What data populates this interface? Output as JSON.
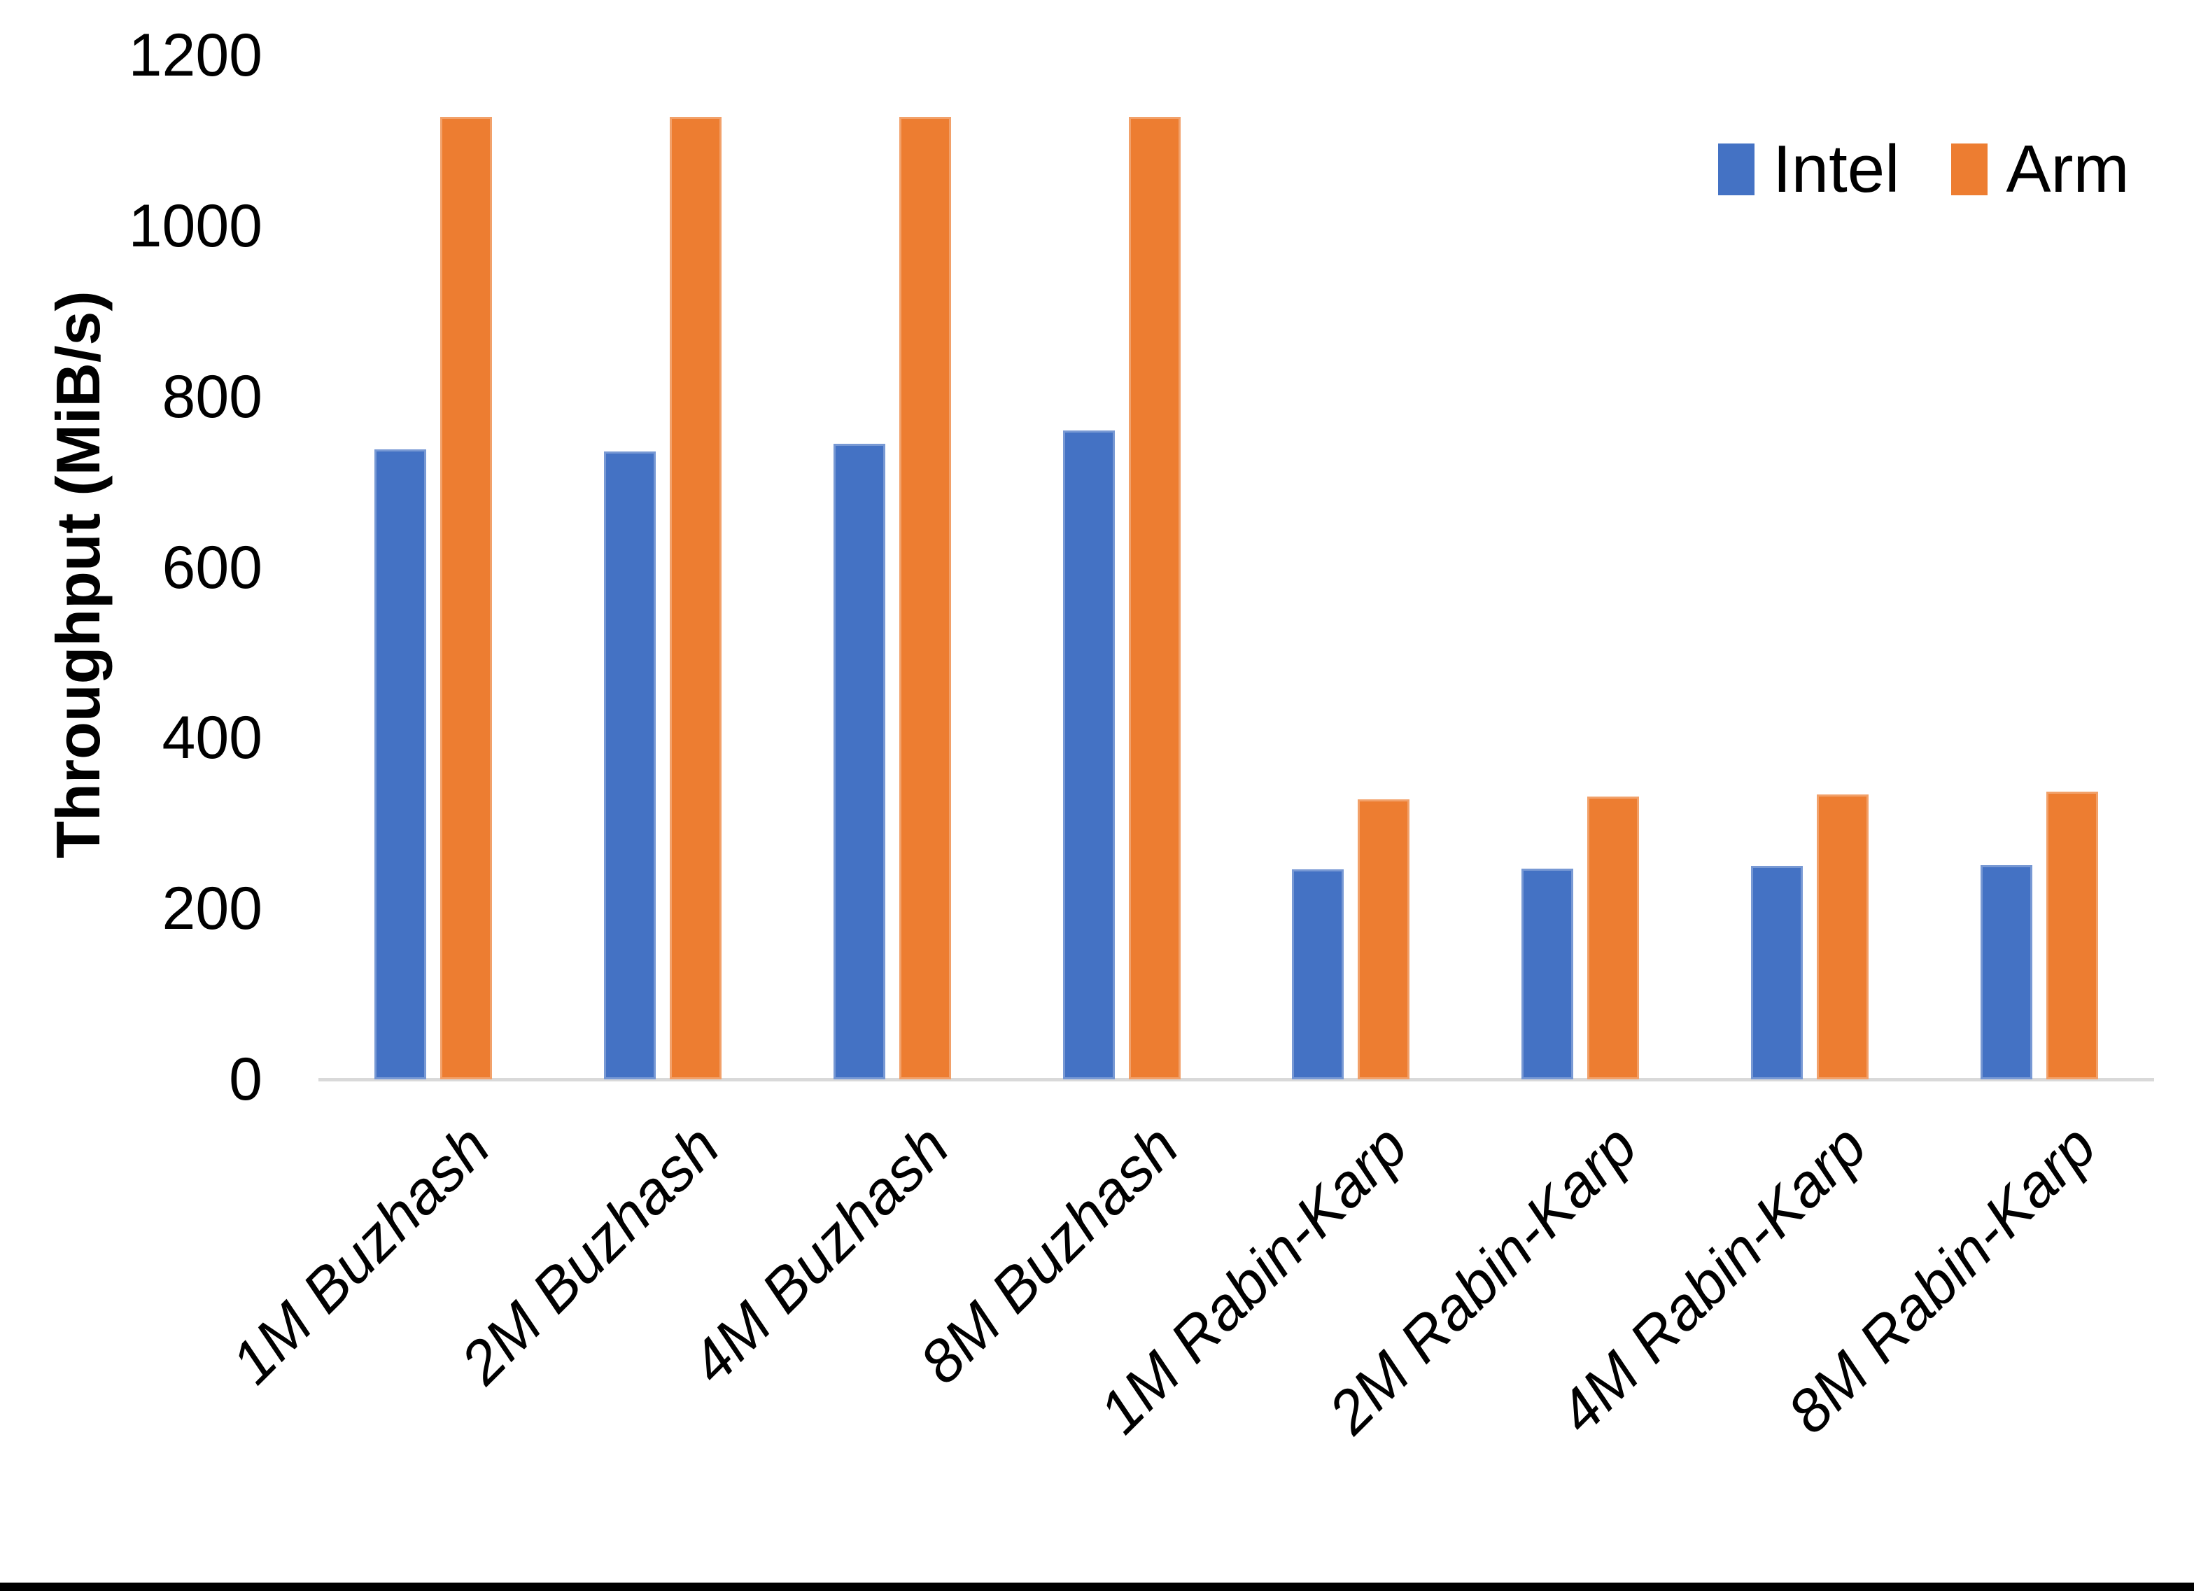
{
  "chart_data": {
    "type": "bar",
    "title": "",
    "ylabel": "Throughput (MiB/s)",
    "xlabel": "",
    "ylim": [
      0,
      1200
    ],
    "yticks": [
      0,
      200,
      400,
      600,
      800,
      1000,
      1200
    ],
    "grid": false,
    "legend_position": "top-right",
    "categories": [
      "1M Buzhash",
      "2M Buzhash",
      "4M Buzhash",
      "8M Buzhash",
      "1M Rabin-Karp",
      "2M Rabin-Karp",
      "4M Rabin-Karp",
      "8M Rabin-Karp"
    ],
    "series": [
      {
        "name": "Intel",
        "color": "#4472C4",
        "values": [
          738,
          736,
          745,
          760,
          246,
          247,
          250,
          251
        ]
      },
      {
        "name": "Arm",
        "color": "#ED7D31",
        "values": [
          1128,
          1128,
          1128,
          1128,
          328,
          331,
          334,
          337
        ]
      }
    ],
    "axis_line_color": "#D9D9D9",
    "text_color": "#000000"
  }
}
